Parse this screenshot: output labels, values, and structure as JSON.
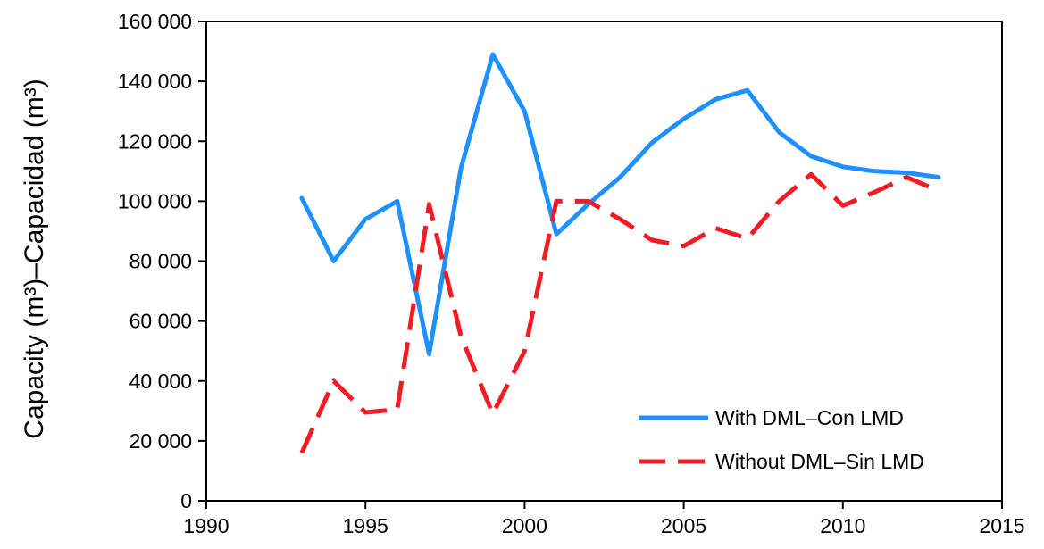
{
  "chart_data": {
    "type": "line",
    "ylabel": "Capacity (m³)–Capacidad (m³)",
    "xlabel": "",
    "xlim": [
      1990,
      2015
    ],
    "ylim": [
      0,
      160000
    ],
    "x_ticks": [
      "1990",
      "1995",
      "2000",
      "2005",
      "2010",
      "2015"
    ],
    "y_ticks": [
      "0",
      "20 000",
      "40 000",
      "60 000",
      "80 000",
      "100 000",
      "120 000",
      "140 000",
      "160 000"
    ],
    "legend_position": "bottom-right",
    "grid": false,
    "x": [
      1993,
      1994,
      1995,
      1996,
      1997,
      1998,
      1999,
      2000,
      2001,
      2002,
      2003,
      2004,
      2005,
      2006,
      2007,
      2008,
      2009,
      2010,
      2011,
      2012,
      2013
    ],
    "series": [
      {
        "name": "With DML–Con LMD",
        "color": "#1e90ff",
        "style": "solid",
        "values": [
          101000,
          80000,
          94000,
          100000,
          49000,
          111000,
          149000,
          130000,
          89000,
          99000,
          108000,
          119500,
          127500,
          134000,
          137000,
          123000,
          115000,
          111500,
          110000,
          109500,
          108000
        ]
      },
      {
        "name": "Without DML–Sin LMD",
        "color": "#f21c24",
        "style": "dashed",
        "values": [
          16000,
          40000,
          29500,
          30500,
          99000,
          55000,
          29000,
          50000,
          100000,
          100000,
          94000,
          87000,
          85000,
          91000,
          87500,
          100000,
          109000,
          98500,
          103000,
          108000,
          103500
        ]
      }
    ]
  }
}
